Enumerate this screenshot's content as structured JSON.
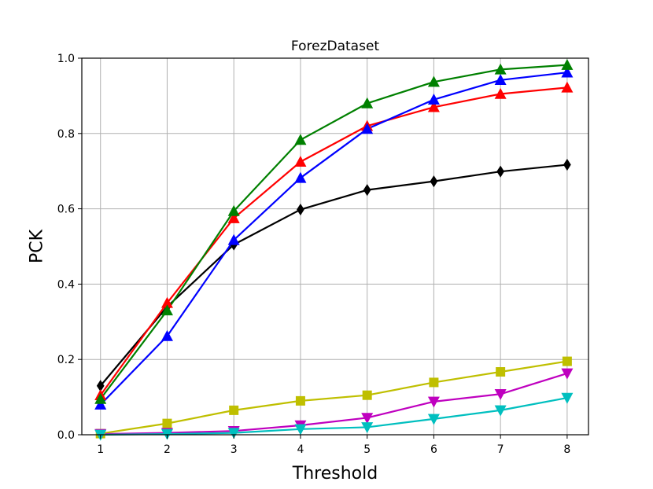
{
  "chart_data": {
    "type": "line",
    "title": "ForezDataset",
    "xlabel": "Threshold",
    "ylabel": "PCK",
    "x": [
      1,
      2,
      3,
      4,
      5,
      6,
      7,
      8
    ],
    "xlim": [
      0.72,
      8.32
    ],
    "ylim": [
      0.0,
      1.0
    ],
    "xticks": [
      "1",
      "2",
      "3",
      "4",
      "5",
      "6",
      "7",
      "8"
    ],
    "yticks": [
      "0.0",
      "0.2",
      "0.4",
      "0.6",
      "0.8",
      "1.0"
    ],
    "grid": true,
    "series": [
      {
        "color": "#000000",
        "marker": "thin_diamond",
        "values": [
          0.13,
          0.34,
          0.505,
          0.598,
          0.65,
          0.673,
          0.699,
          0.717
        ]
      },
      {
        "color": "#ff0000",
        "marker": "triangle_up",
        "values": [
          0.105,
          0.35,
          0.575,
          0.725,
          0.82,
          0.87,
          0.905,
          0.922
        ]
      },
      {
        "color": "#0000ff",
        "marker": "triangle_up",
        "values": [
          0.08,
          0.262,
          0.517,
          0.682,
          0.812,
          0.89,
          0.942,
          0.962
        ]
      },
      {
        "color": "#008000",
        "marker": "triangle_up",
        "values": [
          0.095,
          0.33,
          0.594,
          0.783,
          0.88,
          0.937,
          0.97,
          0.982
        ]
      },
      {
        "color": "#bfbf00",
        "marker": "square",
        "values": [
          0.003,
          0.03,
          0.065,
          0.09,
          0.105,
          0.139,
          0.167,
          0.195
        ]
      },
      {
        "color": "#bf00bf",
        "marker": "triangle_down",
        "values": [
          0.002,
          0.005,
          0.01,
          0.025,
          0.045,
          0.088,
          0.108,
          0.163
        ]
      },
      {
        "color": "#00bfbf",
        "marker": "triangle_down",
        "values": [
          0.0,
          0.002,
          0.005,
          0.015,
          0.02,
          0.042,
          0.065,
          0.098
        ]
      }
    ]
  }
}
